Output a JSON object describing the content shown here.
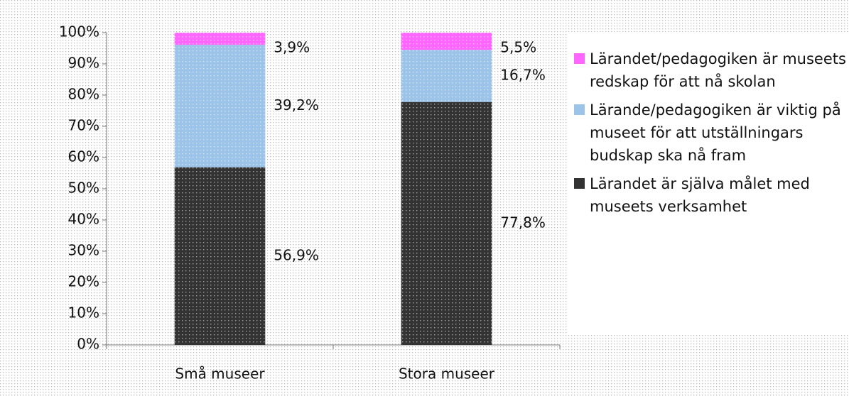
{
  "chart_data": {
    "type": "stacked_bar",
    "categories": [
      "Små museer",
      "Stora museer"
    ],
    "series": [
      {
        "name": "Lärandet är själva målet med museets verksamhet",
        "color": "#333333",
        "values": [
          56.9,
          77.8
        ],
        "value_labels": [
          "56,9%",
          "77,8%"
        ]
      },
      {
        "name": "Lärande/pedagogiken är viktig på museet för att utställningars budskap ska nå fram",
        "color": "#9cc3e8",
        "values": [
          39.2,
          16.7
        ],
        "value_labels": [
          "39,2%",
          "16,7%"
        ]
      },
      {
        "name": "Lärandet/pedagogiken är museets redskap för att nå skolan",
        "color": "#ff66ff",
        "values": [
          3.9,
          5.5
        ],
        "value_labels": [
          "3,9%",
          "5,5%"
        ]
      }
    ],
    "ylim": [
      0,
      100
    ],
    "yticks": [
      {
        "value": 0,
        "label": "0%"
      },
      {
        "value": 10,
        "label": "10%"
      },
      {
        "value": 20,
        "label": "20%"
      },
      {
        "value": 30,
        "label": "30%"
      },
      {
        "value": 40,
        "label": "40%"
      },
      {
        "value": 50,
        "label": "50%"
      },
      {
        "value": 60,
        "label": "60%"
      },
      {
        "value": 70,
        "label": "70%"
      },
      {
        "value": 80,
        "label": "80%"
      },
      {
        "value": 90,
        "label": "90%"
      },
      {
        "value": 100,
        "label": "100%"
      }
    ],
    "legend": "right"
  }
}
